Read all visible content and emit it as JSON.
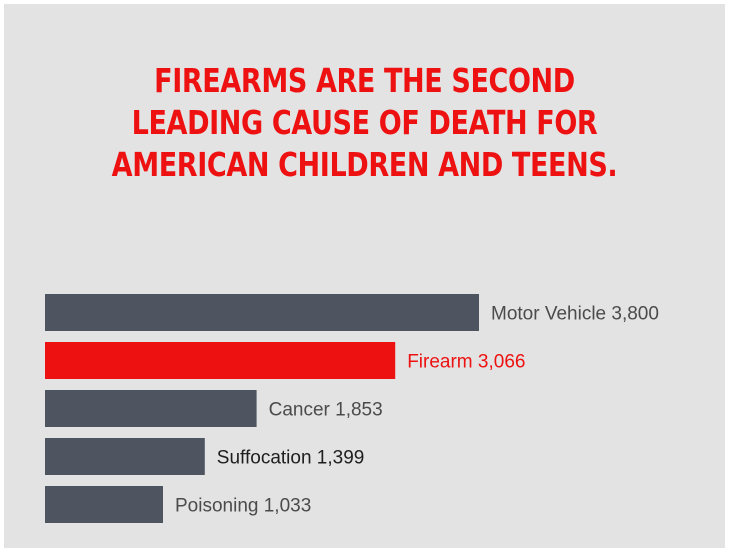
{
  "headline": {
    "lines": [
      "FIREARMS ARE THE SECOND",
      "LEADING CAUSE OF DEATH FOR",
      "AMERICAN CHILDREN AND TEENS."
    ],
    "color": "#ee1111"
  },
  "colors": {
    "background": "#e3e3e3",
    "bar_default": "#4e5560",
    "bar_highlight": "#ee1111",
    "label_default": "#4b4b4b",
    "label_dark": "#1e1e1e",
    "label_highlight": "#ee1111"
  },
  "chart_data": {
    "type": "bar",
    "orientation": "horizontal",
    "categories": [
      "Motor Vehicle",
      "Firearm",
      "Cancer",
      "Suffocation",
      "Poisoning"
    ],
    "values": [
      3800,
      3066,
      1853,
      1399,
      1033
    ],
    "labels": [
      "Motor Vehicle 3,800",
      "Firearm 3,066",
      "Cancer 1,853",
      "Suffocation 1,399",
      "Poisoning 1,033"
    ],
    "highlight_index": 1,
    "xlim": [
      0,
      3800
    ],
    "grid": false,
    "legend": "none"
  }
}
